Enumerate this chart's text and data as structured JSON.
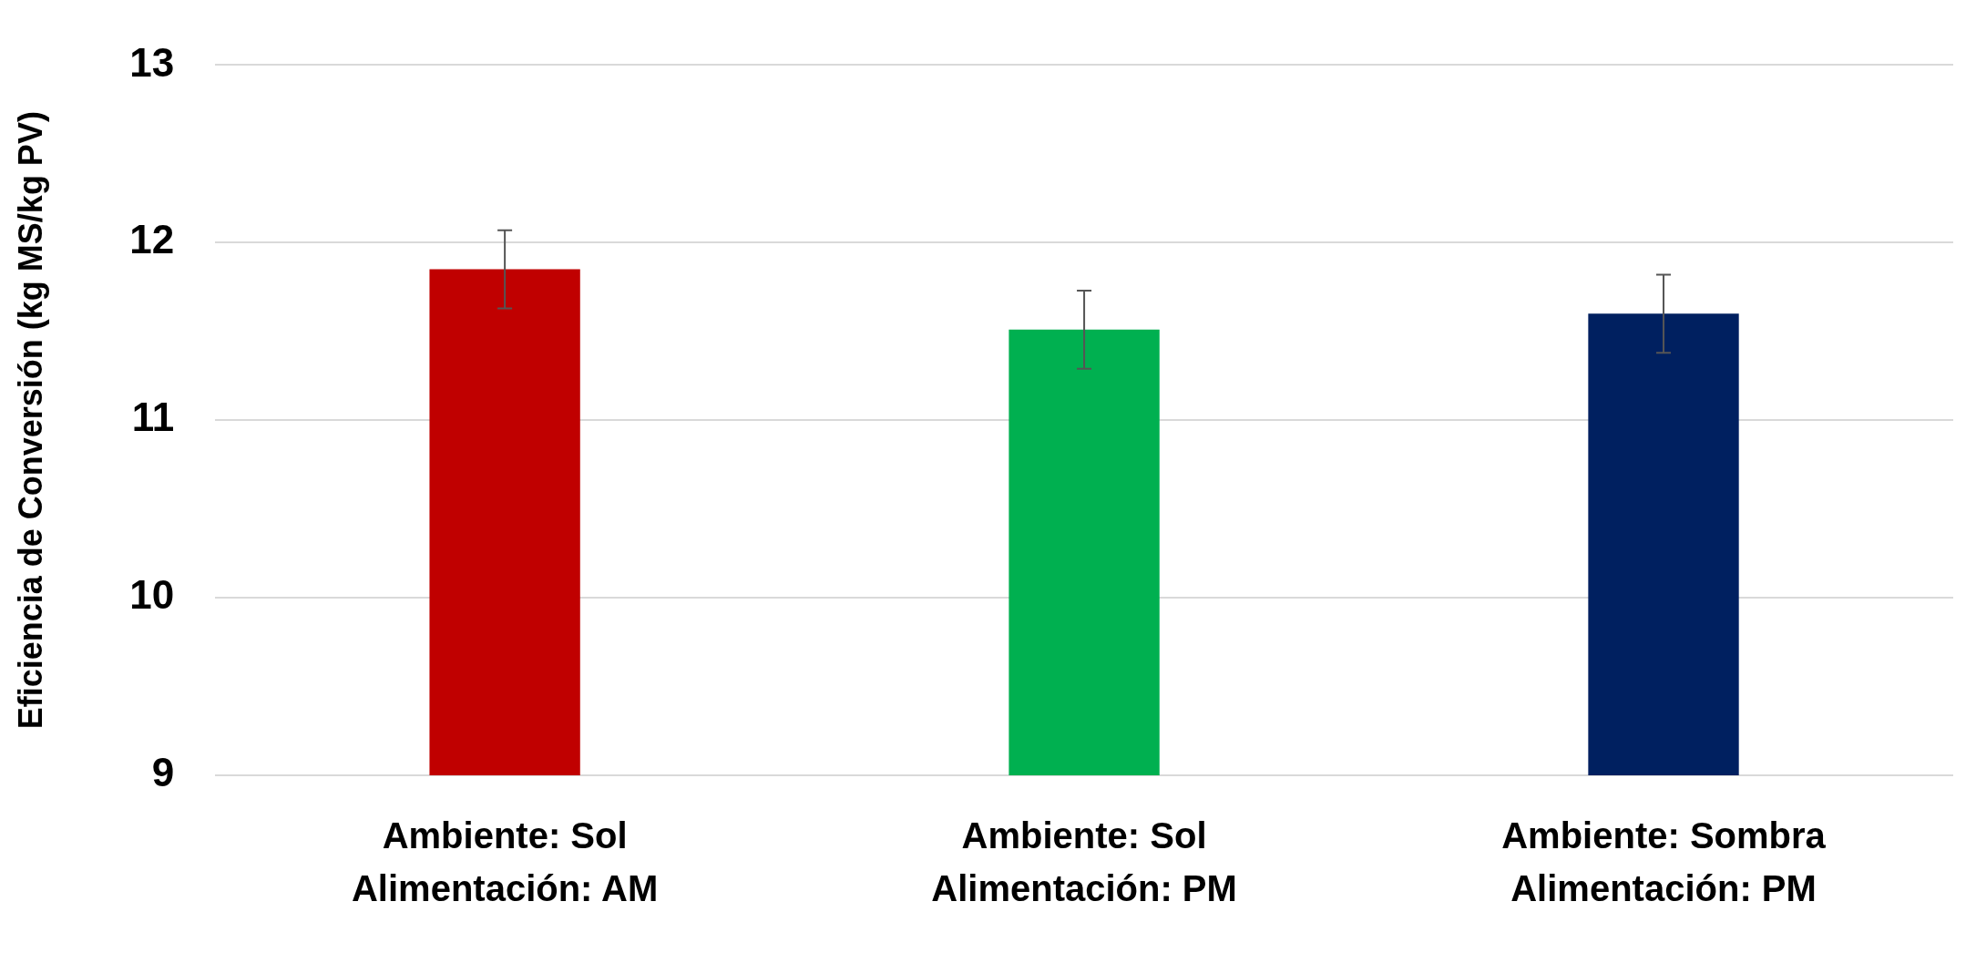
{
  "chart_data": {
    "type": "bar",
    "ylabel": "Eficiencia de Conversión (kg MS/kg PV)",
    "categories": [
      "Ambiente: Sol\nAlimentación: AM",
      "Ambiente: Sol\nAlimentación: PM",
      "Ambiente: Sombra\nAlimentación: PM"
    ],
    "values": [
      11.85,
      11.51,
      11.6
    ],
    "colors": [
      "#c00000",
      "#00b050",
      "#002060"
    ],
    "errors": [
      0.22,
      0.22,
      0.22
    ],
    "ylim": [
      9,
      13
    ],
    "yticks": [
      9,
      10,
      11,
      12,
      13
    ],
    "grid": "y",
    "legend": false
  }
}
